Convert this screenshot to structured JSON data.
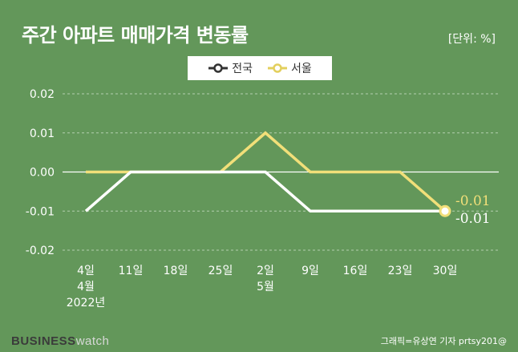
{
  "header": {
    "title": "주간 아파트 매매가격 변동률",
    "unit": "[단위: %]"
  },
  "colors": {
    "background": "#63975a",
    "national": "#ffffff",
    "seoul": "#f1df79",
    "grid": "#b3cfae",
    "zero_line": "#ffffff"
  },
  "chart_data": {
    "type": "line",
    "title": "주간 아파트 매매가격 변동률",
    "unit": "[단위: %]",
    "x": [
      "2022-04-04",
      "2022-04-11",
      "2022-04-18",
      "2022-04-25",
      "2022-05-02",
      "2022-05-09",
      "2022-05-16",
      "2022-05-23",
      "2022-05-30"
    ],
    "x_tick_labels": [
      [
        "4일",
        "4월",
        "2022년"
      ],
      [
        "11일"
      ],
      [
        "18일"
      ],
      [
        "25일"
      ],
      [
        "2일",
        "5월"
      ],
      [
        "9일"
      ],
      [
        "16일"
      ],
      [
        "23일"
      ],
      [
        "30일"
      ]
    ],
    "series": [
      {
        "name": "전국",
        "color": "#ffffff",
        "values": [
          -0.01,
          0.0,
          0.0,
          0.0,
          0.0,
          -0.01,
          -0.01,
          -0.01,
          -0.01
        ]
      },
      {
        "name": "서울",
        "color": "#f1df79",
        "values": [
          0.0,
          0.0,
          0.0,
          0.0,
          0.01,
          0.0,
          0.0,
          0.0,
          -0.01
        ]
      }
    ],
    "ylim": [
      -0.02,
      0.02
    ],
    "yticks": [
      0.02,
      0.01,
      0.0,
      -0.01,
      -0.02
    ],
    "ytick_labels": [
      "0.02",
      "0.01",
      "0.00",
      "-0.01",
      "-0.02"
    ],
    "end_labels": {
      "seoul": "-0.01",
      "national": "-0.01"
    },
    "grid": "horizontal dashed",
    "legend_position": "top-center",
    "xlabel": "",
    "ylabel": ""
  },
  "footer": {
    "brand_bold": "BUSINESS",
    "brand_light": "watch",
    "credit": "그래픽=유상연 기자 prtsy201@"
  }
}
